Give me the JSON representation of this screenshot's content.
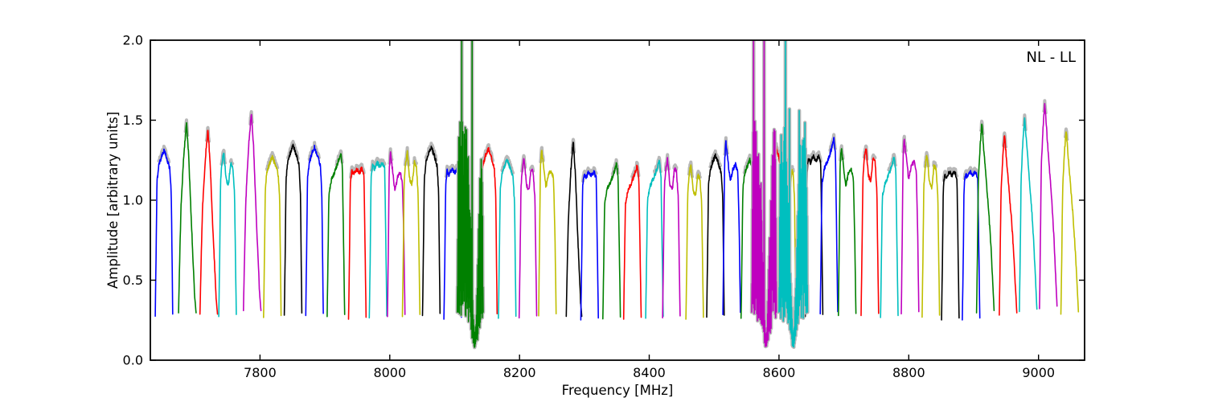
{
  "figure": {
    "background": "#ffffff",
    "frame_color": "#000000"
  },
  "chart_data": {
    "type": "line",
    "title": "",
    "xlabel": "Frequency [MHz]",
    "ylabel": "Amplitude [arbitrary units]",
    "annotation": "NL - LL",
    "xlim": [
      7631,
      9071
    ],
    "ylim": [
      0.0,
      2.0
    ],
    "xticks": [
      7800,
      8000,
      8200,
      8400,
      8600,
      8800,
      9000
    ],
    "yticks": [
      0.0,
      0.5,
      1.0,
      1.5,
      2.0
    ],
    "grid": false,
    "legend": "none",
    "line_colors": {
      "b": "#0000ff",
      "g": "#008000",
      "r": "#ff0000",
      "c": "#00bfbf",
      "m": "#bf00bf",
      "y": "#bfbf00",
      "k": "#000000"
    },
    "error_envelope_color": "#b8b8b8",
    "band_base_amplitude": 0.3,
    "default_band_width_mhz": 27,
    "bands": [
      [
        7652,
        "b",
        1.31,
        "dome"
      ],
      [
        7688,
        "g",
        1.48,
        "tall"
      ],
      [
        7721,
        "r",
        1.44,
        "tall"
      ],
      [
        7750,
        "c",
        1.3,
        "double"
      ],
      [
        7788,
        "m",
        1.55,
        "tall"
      ],
      [
        7819,
        "y",
        1.27,
        "dome"
      ],
      [
        7851,
        "k",
        1.34,
        "dome"
      ],
      [
        7884,
        "b",
        1.33,
        "dome"
      ],
      [
        7917,
        "g",
        1.3,
        "ramp"
      ],
      [
        7950,
        "r",
        1.22,
        "flat"
      ],
      [
        7982,
        "c",
        1.26,
        "flat"
      ],
      [
        8010,
        "m",
        1.3,
        "peakdip"
      ],
      [
        8033,
        "y",
        1.3,
        "double"
      ],
      [
        8064,
        "k",
        1.33,
        "dome"
      ],
      [
        8097,
        "b",
        1.22,
        "flat"
      ],
      [
        8152,
        "r",
        1.32,
        "dome"
      ],
      [
        8181,
        "c",
        1.25,
        "dome"
      ],
      [
        8213,
        "m",
        1.26,
        "double"
      ],
      [
        8243,
        "y",
        1.32,
        "peakdip"
      ],
      [
        8284,
        "k",
        1.37,
        "tall",
        24
      ],
      [
        8308,
        "b",
        1.2,
        "flat"
      ],
      [
        8342,
        "g",
        1.23,
        "ramp"
      ],
      [
        8374,
        "r",
        1.22,
        "ramp"
      ],
      [
        8408,
        "c",
        1.25,
        "ramp"
      ],
      [
        8434,
        "m",
        1.26,
        "double"
      ],
      [
        8470,
        "y",
        1.22,
        "double"
      ],
      [
        8502,
        "k",
        1.28,
        "dome"
      ],
      [
        8527,
        "b",
        1.36,
        "peakdip"
      ],
      [
        8555,
        "g",
        1.25,
        "dome"
      ],
      [
        8596,
        "r",
        1.33,
        "dome",
        18
      ],
      [
        8616,
        "y",
        1.25,
        "double",
        20
      ],
      [
        8654,
        "k",
        1.3,
        "flat"
      ],
      [
        8677,
        "b",
        1.38,
        "ramp"
      ],
      [
        8705,
        "g",
        1.33,
        "peakdip"
      ],
      [
        8740,
        "r",
        1.33,
        "double"
      ],
      [
        8770,
        "c",
        1.27,
        "ramp"
      ],
      [
        8802,
        "m",
        1.38,
        "peakdip"
      ],
      [
        8834,
        "y",
        1.28,
        "double"
      ],
      [
        8864,
        "k",
        1.2,
        "flat"
      ],
      [
        8896,
        "b",
        1.2,
        "flat"
      ],
      [
        8918,
        "g",
        1.48,
        "sharp"
      ],
      [
        8953,
        "r",
        1.41,
        "sharp"
      ],
      [
        8984,
        "c",
        1.52,
        "sharp"
      ],
      [
        9015,
        "m",
        1.61,
        "sharp"
      ],
      [
        9048,
        "y",
        1.44,
        "sharp"
      ]
    ],
    "noisy_bands": [
      {
        "range": [
          8104,
          8144
        ],
        "color": "g",
        "pinch": 8131,
        "spikes": [
          [
            8111,
            2.15
          ],
          [
            8127,
            2.15
          ]
        ],
        "note": "RFI-corrupted band, spikes clipped at plot top, dips to ~0.07"
      },
      {
        "range": [
          8558,
          8596
        ],
        "color": "m",
        "pinch": 8580,
        "spikes": [
          [
            8561,
            2.15
          ],
          [
            8577,
            2.15
          ]
        ],
        "note": "RFI-corrupted band, spikes clipped at plot top, dips to ~0.07"
      },
      {
        "range": [
          8600,
          8644
        ],
        "color": "c",
        "pinch": 8622,
        "spikes": [
          [
            8610,
            2.15
          ],
          [
            8616,
            1.57
          ],
          [
            8631,
            1.56
          ]
        ],
        "note": "RFI-corrupted band, one spike clipped at top, dips to ~0.1"
      }
    ]
  }
}
